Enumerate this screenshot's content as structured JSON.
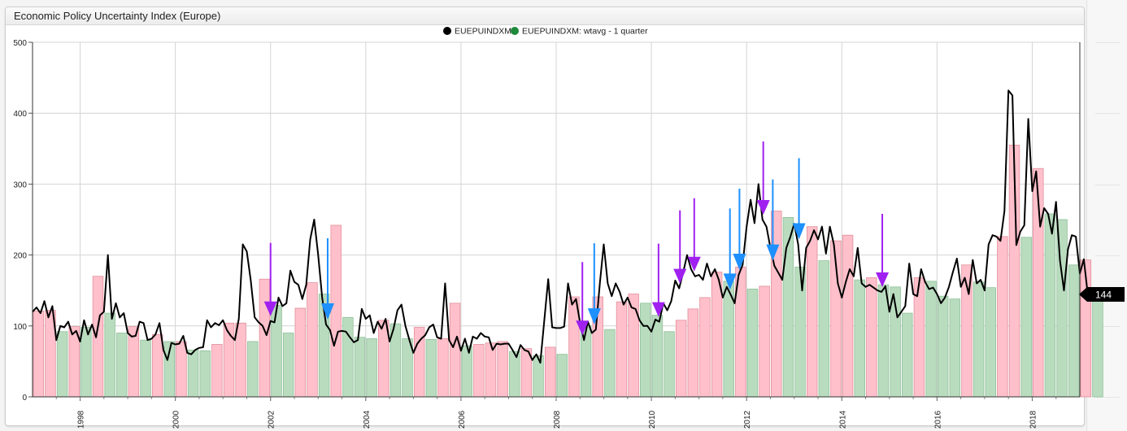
{
  "panel": {
    "title": "Economic Policy Uncertainty Index (Europe)"
  },
  "badge": {
    "value": "144"
  },
  "chart_data": {
    "type": "line",
    "title": "Economic Policy Uncertainty Index (Europe)",
    "xlabel": "",
    "ylabel": "",
    "xlim": [
      1997.0,
      2019.0
    ],
    "ylim": [
      0,
      500
    ],
    "yticks": [
      0,
      100,
      200,
      300,
      400,
      500
    ],
    "xticks": [
      1998,
      2000,
      2002,
      2004,
      2006,
      2008,
      2010,
      2012,
      2014,
      2016,
      2018
    ],
    "grid": true,
    "legend": {
      "position": "top-center"
    },
    "colors": {
      "line": "#000000",
      "bar_up": "#ffc0cb",
      "bar_up_edge": "#e08f9b",
      "bar_down": "#b9dcbf",
      "bar_down_edge": "#8fbf98",
      "arrow_blue": "#1e90ff",
      "arrow_purple": "#a020f0",
      "legend_green": "#1c8a3a"
    },
    "series": [
      {
        "name": "EUEPUINDXM",
        "kind": "line",
        "start": 1997.0,
        "step": 0.0833333,
        "values": [
          120,
          126,
          118,
          135,
          112,
          128,
          80,
          100,
          98,
          106,
          88,
          93,
          78,
          108,
          88,
          102,
          84,
          115,
          120,
          200,
          110,
          132,
          112,
          118,
          90,
          85,
          86,
          106,
          104,
          80,
          82,
          88,
          104,
          66,
          52,
          76,
          74,
          75,
          86,
          62,
          60,
          66,
          69,
          70,
          108,
          98,
          104,
          101,
          108,
          94,
          86,
          80,
          110,
          215,
          205,
          165,
          112,
          105,
          100,
          87,
          107,
          105,
          140,
          128,
          132,
          178,
          162,
          158,
          138,
          158,
          222,
          250,
          200,
          140,
          102,
          94,
          72,
          92,
          93,
          92,
          84,
          77,
          80,
          124,
          110,
          115,
          90,
          106,
          96,
          110,
          78,
          96,
          122,
          130,
          100,
          80,
          62,
          75,
          82,
          87,
          98,
          102,
          84,
          82,
          160,
          80,
          70,
          85,
          65,
          82,
          62,
          85,
          82,
          90,
          85,
          84,
          66,
          75,
          74,
          75,
          75,
          66,
          56,
          73,
          66,
          64,
          52,
          60,
          48,
          108,
          166,
          98,
          97,
          97,
          99,
          160,
          130,
          138,
          105,
          80,
          106,
          90,
          95,
          160,
          215,
          160,
          142,
          160,
          148,
          130,
          140,
          126,
          124,
          108,
          100,
          100,
          92,
          109,
          106,
          132,
          122,
          135,
          164,
          153,
          175,
          200,
          180,
          170,
          172,
          165,
          188,
          170,
          180,
          165,
          140,
          155,
          144,
          132,
          172,
          186,
          240,
          278,
          245,
          300,
          250,
          240,
          210,
          185,
          175,
          165,
          210,
          225,
          244,
          215,
          150,
          210,
          220,
          235,
          222,
          240,
          202,
          240,
          215,
          160,
          140,
          162,
          180,
          170,
          210,
          160,
          155,
          158,
          154,
          150,
          148,
          156,
          120,
          145,
          112,
          120,
          128,
          188,
          145,
          142,
          180,
          162,
          152,
          154,
          145,
          132,
          140,
          155,
          176,
          195,
          155,
          168,
          145,
          193,
          160,
          165,
          150,
          215,
          228,
          226,
          220,
          262,
          432,
          425,
          214,
          233,
          242,
          392,
          290,
          318,
          240,
          266,
          258,
          230,
          275,
          192,
          150,
          208,
          228,
          226,
          174,
          194,
          144
        ]
      },
      {
        "name": "EUEPUINDXM: wtavg - 1 quarter",
        "kind": "bar",
        "start": 1997.0,
        "width": 0.25,
        "values": [
          121,
          122,
          92,
          99,
          98,
          170,
          118,
          90,
          99,
          80,
          88,
          78,
          78,
          66,
          65,
          74,
          104,
          104,
          78,
          166,
          129,
          90,
          125,
          161,
          145,
          242,
          112,
          84,
          82,
          108,
          103,
          82,
          98,
          81,
          82,
          132,
          72,
          74,
          76,
          78,
          64,
          68,
          58,
          70,
          60,
          141,
          100,
          141,
          95,
          134,
          145,
          132,
          115,
          92,
          108,
          124,
          140,
          176,
          163,
          183,
          152,
          156,
          262,
          253,
          183,
          240,
          192,
          220,
          228,
          165,
          168,
          158,
          155,
          118,
          168,
          163,
          142,
          138,
          186,
          162,
          154,
          226,
          355,
          225,
          322,
          258,
          250,
          186,
          193,
          144
        ]
      }
    ],
    "annotations": {
      "blue_arrows": [
        2003.2,
        2008.8,
        2011.65,
        2011.85,
        2012.55,
        2013.1
      ],
      "purple_arrows": [
        2002.0,
        2008.55,
        2010.15,
        2010.6,
        2010.9,
        2012.35,
        2014.85
      ]
    }
  }
}
